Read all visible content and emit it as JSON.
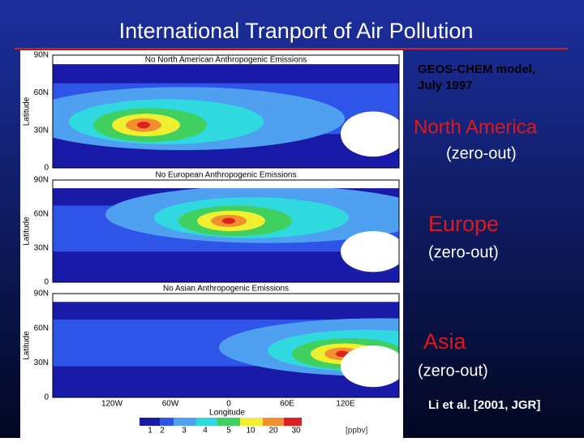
{
  "title": "International Tranport of Air Pollution",
  "panels": [
    {
      "title": "No North American Anthropogenic Emissions",
      "lat_labels": [
        "90N",
        "60N",
        "30N",
        "0"
      ],
      "axis_label": "Latitude"
    },
    {
      "title": "No European Anthropogenic Emissions",
      "lat_labels": [
        "90N",
        "60N",
        "30N",
        "0"
      ],
      "axis_label": "Latitude"
    },
    {
      "title": "No Asian Anthropogenic Emissions",
      "lat_labels": [
        "90N",
        "60N",
        "30N",
        "0"
      ],
      "axis_label": "Latitude"
    }
  ],
  "x_axis": {
    "labels": [
      "120W",
      "60W",
      "0",
      "60E",
      "120E"
    ],
    "title": "Longitude"
  },
  "colorbar": {
    "labels": [
      "1",
      "2",
      "3",
      "4",
      "5",
      "10",
      "20",
      "30"
    ],
    "unit": "[ppbv]"
  },
  "notes": {
    "model": "GEOS-CHEM model,",
    "date": "July 1997",
    "region1": "North America",
    "sub1": "(zero-out)",
    "region2": "Europe",
    "sub2": "(zero-out)",
    "region3": "Asia",
    "sub3": "(zero-out)",
    "reference": "Li et al. [2001, JGR]"
  }
}
